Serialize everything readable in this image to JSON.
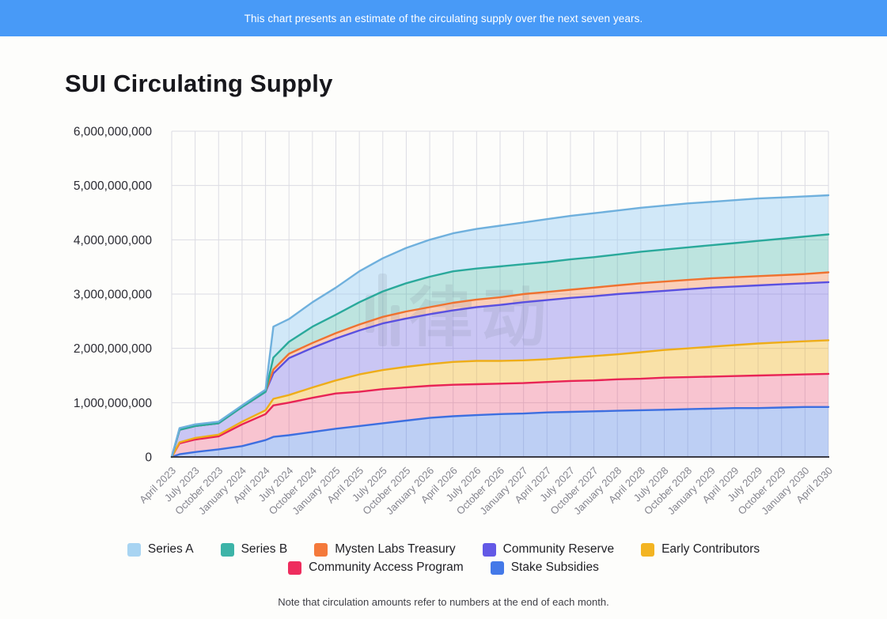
{
  "banner": {
    "text": "This chart presents an estimate of the circulating supply over the next seven years."
  },
  "page": {
    "background": "#fdfdfb",
    "banner_color": "#489af7"
  },
  "watermark": {
    "text": "律动"
  },
  "footnote": {
    "text": "Note that circulation amounts refer to numbers at the end of each month."
  },
  "chart_data": {
    "type": "area",
    "stacked": true,
    "title": "SUI Circulating Supply",
    "xlabel": "",
    "ylabel": "",
    "values_unit": "billions of SUI tokens",
    "y_max_billions": 6,
    "y_ticks": [
      "0",
      "1,000,000,000",
      "2,000,000,000",
      "3,000,000,000",
      "4,000,000,000",
      "5,000,000,000",
      "6,000,000,000"
    ],
    "grid": true,
    "legend_position": "bottom",
    "x_tick_labels": [
      "April 2023",
      "July 2023",
      "October 2023",
      "January 2024",
      "April 2024",
      "July 2024",
      "October 2024",
      "January 2025",
      "April 2025",
      "July 2025",
      "October 2025",
      "January 2026",
      "April 2026",
      "July 2026",
      "October 2026",
      "January 2027",
      "April 2027",
      "July 2027",
      "October 2027",
      "January 2028",
      "April 2028",
      "July 2028",
      "October 2028",
      "January 2029",
      "April 2029",
      "July 2029",
      "October 2029",
      "January 2030",
      "April 2030"
    ],
    "months_since_april_2023": [
      0,
      1,
      3,
      6,
      9,
      12,
      13,
      15,
      18,
      21,
      24,
      27,
      30,
      33,
      36,
      39,
      42,
      45,
      48,
      51,
      54,
      57,
      60,
      63,
      66,
      69,
      72,
      75,
      78,
      81,
      84
    ],
    "stack_order_bottom_to_top": [
      "Stake Subsidies",
      "Community Access Program",
      "Early Contributors",
      "Community Reserve",
      "Mysten Labs Treasury",
      "Series B",
      "Series A"
    ],
    "legend_rows": [
      [
        0,
        1,
        2,
        3,
        4
      ],
      [
        5,
        6
      ]
    ],
    "series": [
      {
        "name": "Series A",
        "swatch": "#a8d4f2",
        "line": "#6fb0dd",
        "fill": "rgba(147,203,242,0.42)",
        "values": [
          0,
          0.03,
          0.03,
          0.03,
          0.03,
          0.04,
          0.57,
          0.42,
          0.45,
          0.5,
          0.57,
          0.61,
          0.65,
          0.68,
          0.7,
          0.73,
          0.75,
          0.77,
          0.79,
          0.8,
          0.81,
          0.81,
          0.81,
          0.81,
          0.81,
          0.8,
          0.79,
          0.78,
          0.76,
          0.74,
          0.72
        ]
      },
      {
        "name": "Series B",
        "swatch": "#3db4a8",
        "line": "#2aa99b",
        "fill": "rgba(61,180,168,0.33)",
        "values": [
          0,
          0,
          0,
          0,
          0,
          0,
          0.22,
          0.22,
          0.3,
          0.34,
          0.41,
          0.47,
          0.52,
          0.56,
          0.58,
          0.57,
          0.57,
          0.55,
          0.55,
          0.56,
          0.56,
          0.57,
          0.58,
          0.59,
          0.6,
          0.61,
          0.63,
          0.65,
          0.67,
          0.69,
          0.7
        ]
      },
      {
        "name": "Mysten Labs Treasury",
        "swatch": "#f4793b",
        "line": "#ef7230",
        "fill": "rgba(244,121,59,0.35)",
        "values": [
          0,
          0,
          0,
          0,
          0,
          0,
          0.07,
          0.08,
          0.09,
          0.1,
          0.11,
          0.12,
          0.13,
          0.13,
          0.14,
          0.14,
          0.14,
          0.15,
          0.15,
          0.15,
          0.16,
          0.16,
          0.17,
          0.17,
          0.17,
          0.17,
          0.17,
          0.17,
          0.17,
          0.17,
          0.18
        ]
      },
      {
        "name": "Community Reserve",
        "swatch": "#6359e6",
        "line": "#5a50e0",
        "fill": "rgba(99,89,230,0.33)",
        "values": [
          0,
          0.23,
          0.22,
          0.21,
          0.27,
          0.34,
          0.47,
          0.68,
          0.73,
          0.77,
          0.81,
          0.86,
          0.89,
          0.92,
          0.95,
          0.99,
          1.03,
          1.07,
          1.09,
          1.1,
          1.1,
          1.11,
          1.1,
          1.09,
          1.09,
          1.09,
          1.08,
          1.07,
          1.07,
          1.07,
          1.07
        ]
      },
      {
        "name": "Early Contributors",
        "swatch": "#f3b422",
        "line": "#eead19",
        "fill": "rgba(243,180,34,0.38)",
        "values": [
          0,
          0.02,
          0.03,
          0.03,
          0.05,
          0.07,
          0.12,
          0.14,
          0.19,
          0.24,
          0.32,
          0.35,
          0.38,
          0.4,
          0.42,
          0.43,
          0.42,
          0.42,
          0.42,
          0.43,
          0.45,
          0.46,
          0.49,
          0.51,
          0.53,
          0.55,
          0.57,
          0.59,
          0.6,
          0.61,
          0.62
        ]
      },
      {
        "name": "Community Access Program",
        "swatch": "#ee2d5e",
        "line": "#e82455",
        "fill": "rgba(238,45,94,0.27)",
        "values": [
          0,
          0.2,
          0.23,
          0.24,
          0.4,
          0.48,
          0.58,
          0.6,
          0.63,
          0.65,
          0.63,
          0.63,
          0.61,
          0.59,
          0.58,
          0.57,
          0.56,
          0.56,
          0.56,
          0.57,
          0.57,
          0.58,
          0.58,
          0.59,
          0.59,
          0.59,
          0.59,
          0.6,
          0.6,
          0.6,
          0.61
        ]
      },
      {
        "name": "Stake Subsidies",
        "swatch": "#4479e8",
        "line": "#3d6fe0",
        "fill": "rgba(68,121,232,0.35)",
        "values": [
          0,
          0.05,
          0.09,
          0.14,
          0.2,
          0.31,
          0.37,
          0.4,
          0.46,
          0.52,
          0.57,
          0.62,
          0.67,
          0.72,
          0.75,
          0.77,
          0.79,
          0.8,
          0.82,
          0.83,
          0.84,
          0.85,
          0.86,
          0.87,
          0.88,
          0.89,
          0.9,
          0.9,
          0.91,
          0.92,
          0.92
        ]
      }
    ]
  }
}
